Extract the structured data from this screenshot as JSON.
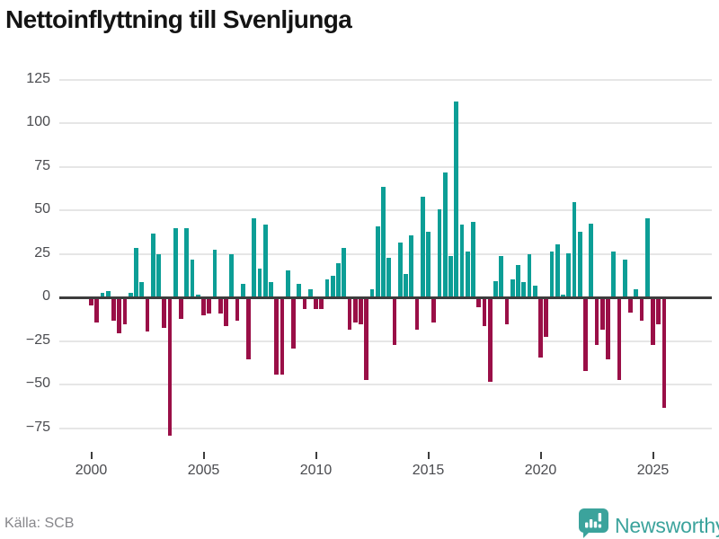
{
  "header": {
    "title": "Nettoinflyttning till Svenljunga"
  },
  "footer": {
    "source": "Källa: SCB",
    "brand": "Newsworthy"
  },
  "colors": {
    "positive_bar": "#0C9E96",
    "negative_bar": "#9A0F47",
    "brand_teal": "#3BA39C",
    "gridline": "#E6E6E6",
    "zero_line": "#3D3D3D",
    "axis_text": "#4A4B4F",
    "title_text": "#141414",
    "source_text": "#87878B"
  },
  "icons": {
    "brand_icon": "bar-chart-speech-bubble"
  },
  "chart_data": {
    "type": "bar",
    "title": "Nettoinflyttning till Svenljunga",
    "frequency": "quarterly",
    "grid": true,
    "legend": false,
    "x_axis": {
      "tick_labels": [
        "2000",
        "2005",
        "2010",
        "2015",
        "2020",
        "2025"
      ]
    },
    "y_axis": {
      "tick_values": [
        125,
        100,
        75,
        50,
        25,
        0,
        -25,
        -50,
        -75
      ],
      "range": [
        -85,
        135
      ]
    },
    "series": [
      {
        "year": 2000,
        "values": [
          -4,
          -14,
          2,
          3
        ]
      },
      {
        "year": 2001,
        "values": [
          -13,
          -20,
          -15,
          2
        ]
      },
      {
        "year": 2002,
        "values": [
          28,
          8,
          -19,
          36
        ]
      },
      {
        "year": 2003,
        "values": [
          24,
          -17,
          -79,
          39
        ]
      },
      {
        "year": 2004,
        "values": [
          -12,
          39,
          21,
          1
        ]
      },
      {
        "year": 2005,
        "values": [
          -10,
          -9,
          27,
          -9
        ]
      },
      {
        "year": 2006,
        "values": [
          -16,
          24,
          -13,
          7
        ]
      },
      {
        "year": 2007,
        "values": [
          -35,
          45,
          16,
          41
        ]
      },
      {
        "year": 2008,
        "values": [
          8,
          -44,
          -44,
          15
        ]
      },
      {
        "year": 2009,
        "values": [
          -29,
          7,
          -6,
          4
        ]
      },
      {
        "year": 2010,
        "values": [
          -6,
          -6,
          10,
          12
        ]
      },
      {
        "year": 2011,
        "values": [
          19,
          28,
          -18,
          -14
        ]
      },
      {
        "year": 2012,
        "values": [
          -15,
          -47,
          4,
          40
        ]
      },
      {
        "year": 2013,
        "values": [
          63,
          22,
          -27,
          31
        ]
      },
      {
        "year": 2014,
        "values": [
          13,
          35,
          -18,
          57
        ]
      },
      {
        "year": 2015,
        "values": [
          37,
          -14,
          50,
          71
        ]
      },
      {
        "year": 2016,
        "values": [
          23,
          112,
          41,
          26
        ]
      },
      {
        "year": 2017,
        "values": [
          43,
          -5,
          -16,
          -48
        ]
      },
      {
        "year": 2018,
        "values": [
          9,
          23,
          -15,
          10
        ]
      },
      {
        "year": 2019,
        "values": [
          18,
          8,
          24,
          6
        ]
      },
      {
        "year": 2020,
        "values": [
          -34,
          -22,
          26,
          30
        ]
      },
      {
        "year": 2021,
        "values": [
          1,
          25,
          54,
          37
        ]
      },
      {
        "year": 2022,
        "values": [
          -42,
          42,
          -27,
          -18
        ]
      },
      {
        "year": 2023,
        "values": [
          -35,
          26,
          -47,
          21
        ]
      },
      {
        "year": 2024,
        "values": [
          -8,
          4,
          -13,
          45
        ]
      },
      {
        "year": 2025,
        "values": [
          -27,
          -15,
          -63
        ]
      }
    ]
  }
}
